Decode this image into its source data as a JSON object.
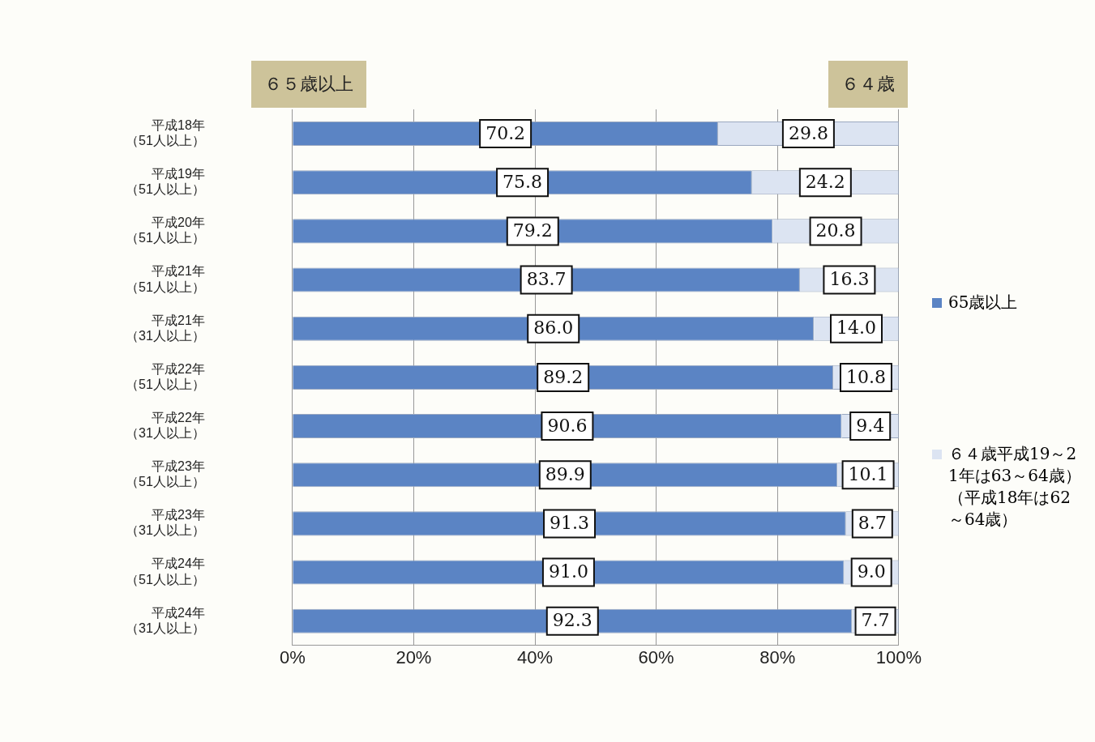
{
  "chart_data": {
    "type": "bar",
    "orientation": "horizontal",
    "stacked": true,
    "grid": "x",
    "legend": "right",
    "categories": [
      "平成18年（51人以上）",
      "平成19年（51人以上）",
      "平成20年（51人以上）",
      "平成21年（51人以上）",
      "平成21年（31人以上）",
      "平成22年（51人以上）",
      "平成22年（31人以上）",
      "平成23年（51人以上）",
      "平成23年（31人以上）",
      "平成24年（51人以上）",
      "平成24年（31人以上）"
    ],
    "series": [
      {
        "name": "65歳以上",
        "color": "#5b84c4",
        "values": [
          70.2,
          75.8,
          79.2,
          83.7,
          86.0,
          89.2,
          90.6,
          89.9,
          91.3,
          91.0,
          92.3
        ],
        "value_labels": [
          "70.2",
          "75.8",
          "79.2",
          "83.7",
          "86.0",
          "89.2",
          "90.6",
          "89.9",
          "91.3",
          "91.0",
          "92.3"
        ]
      },
      {
        "name": "６４歳平成19～21年は63～64歳）（平成18年は62～64歳）",
        "color": "#dce4f2",
        "values": [
          29.8,
          24.2,
          20.8,
          16.3,
          14.0,
          10.8,
          9.4,
          10.1,
          8.7,
          9.0,
          7.7
        ],
        "value_labels": [
          "29.8",
          "24.2",
          "20.8",
          "16.3",
          "14.0",
          "10.8",
          "9.4",
          "10.1",
          "8.7",
          "9.0",
          "7.7"
        ]
      }
    ],
    "xlim": [
      0,
      100
    ],
    "xticks": [
      {
        "value": 0,
        "label": "0%"
      },
      {
        "value": 20,
        "label": "20%"
      },
      {
        "value": 40,
        "label": "40%"
      },
      {
        "value": 60,
        "label": "60%"
      },
      {
        "value": 80,
        "label": "80%"
      },
      {
        "value": 100,
        "label": "100%"
      }
    ],
    "annotations": [
      "６５歳以上",
      "６４歳"
    ]
  }
}
